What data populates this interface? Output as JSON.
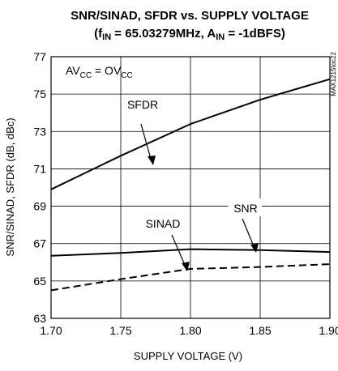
{
  "chart_data": {
    "type": "line",
    "title_line1": "SNR/SINAD, SFDR vs. SUPPLY VOLTAGE",
    "title_line2": {
      "prefix": "(f",
      "sub1": "IN",
      "mid": " = 65.03279MHz, A",
      "sub2": "IN",
      "suffix": " = -1dBFS)"
    },
    "xlabel": "SUPPLY VOLTAGE (V)",
    "ylabel": "SNR/SINAD, SFDR (dB, dBc)",
    "xlim": [
      1.7,
      1.9
    ],
    "ylim": [
      63,
      77
    ],
    "x_ticks": [
      "1.70",
      "1.75",
      "1.80",
      "1.85",
      "1.90"
    ],
    "x_tick_values": [
      1.7,
      1.75,
      1.8,
      1.85,
      1.9
    ],
    "y_ticks": [
      "63",
      "65",
      "67",
      "69",
      "71",
      "73",
      "75",
      "77"
    ],
    "y_tick_values": [
      63,
      65,
      67,
      69,
      71,
      73,
      75,
      77
    ],
    "grid": true,
    "condition_label": {
      "a": "AV",
      "a_sub": "CC",
      "mid": " = OV",
      "b_sub": "CC"
    },
    "side_tag": "MAX1215toc22",
    "series": [
      {
        "name": "SFDR",
        "style": "solid",
        "x": [
          1.7,
          1.75,
          1.8,
          1.85,
          1.9
        ],
        "y": [
          69.9,
          71.7,
          73.4,
          74.7,
          75.8
        ]
      },
      {
        "name": "SNR",
        "style": "solid",
        "x": [
          1.7,
          1.75,
          1.8,
          1.85,
          1.9
        ],
        "y": [
          66.35,
          66.5,
          66.7,
          66.65,
          66.55
        ]
      },
      {
        "name": "SINAD",
        "style": "dashed",
        "x": [
          1.7,
          1.75,
          1.8,
          1.85,
          1.9
        ],
        "y": [
          64.5,
          65.1,
          65.65,
          65.75,
          65.9
        ]
      }
    ]
  }
}
